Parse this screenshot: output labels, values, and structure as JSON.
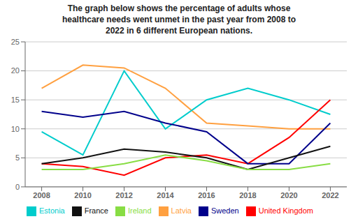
{
  "chart_data": {
    "type": "line",
    "title": "The graph below shows the percentage of adults whose\nhealthcare needs went unmet in the past year from 2008 to\n2022 in 6 different European nations.",
    "x": [
      2008,
      2010,
      2012,
      2014,
      2016,
      2018,
      2020,
      2022
    ],
    "series": [
      {
        "name": "Latvia",
        "color": "#FFA040",
        "values": [
          17,
          21,
          20.5,
          17,
          11,
          10.5,
          10,
          10
        ]
      },
      {
        "name": "Estonia",
        "color": "#00CCCC",
        "values": [
          9.5,
          5.5,
          20,
          10,
          15,
          17,
          15,
          12.5
        ]
      },
      {
        "name": "United Kingdom",
        "color": "#FF0000",
        "values": [
          4,
          3.5,
          2,
          5,
          5.5,
          4,
          8.5,
          15
        ]
      },
      {
        "name": "Sweden",
        "color": "#00008B",
        "values": [
          13,
          12,
          13,
          11,
          9.5,
          4,
          4,
          11
        ]
      },
      {
        "name": "France",
        "color": "#111111",
        "values": [
          4,
          5,
          6.5,
          6,
          5,
          3,
          5,
          7
        ]
      },
      {
        "name": "Ireland",
        "color": "#88DD44",
        "values": [
          3,
          3,
          4,
          5.5,
          4.5,
          3,
          3,
          4
        ]
      }
    ],
    "xlim": [
      2007.2,
      2022.8
    ],
    "xticks": [
      2008,
      2010,
      2012,
      2014,
      2016,
      2018,
      2020,
      2022
    ],
    "ylim": [
      0,
      25
    ],
    "yticks": [
      0,
      5,
      10,
      15,
      20,
      25
    ],
    "grid": true,
    "legend": "bottom"
  }
}
